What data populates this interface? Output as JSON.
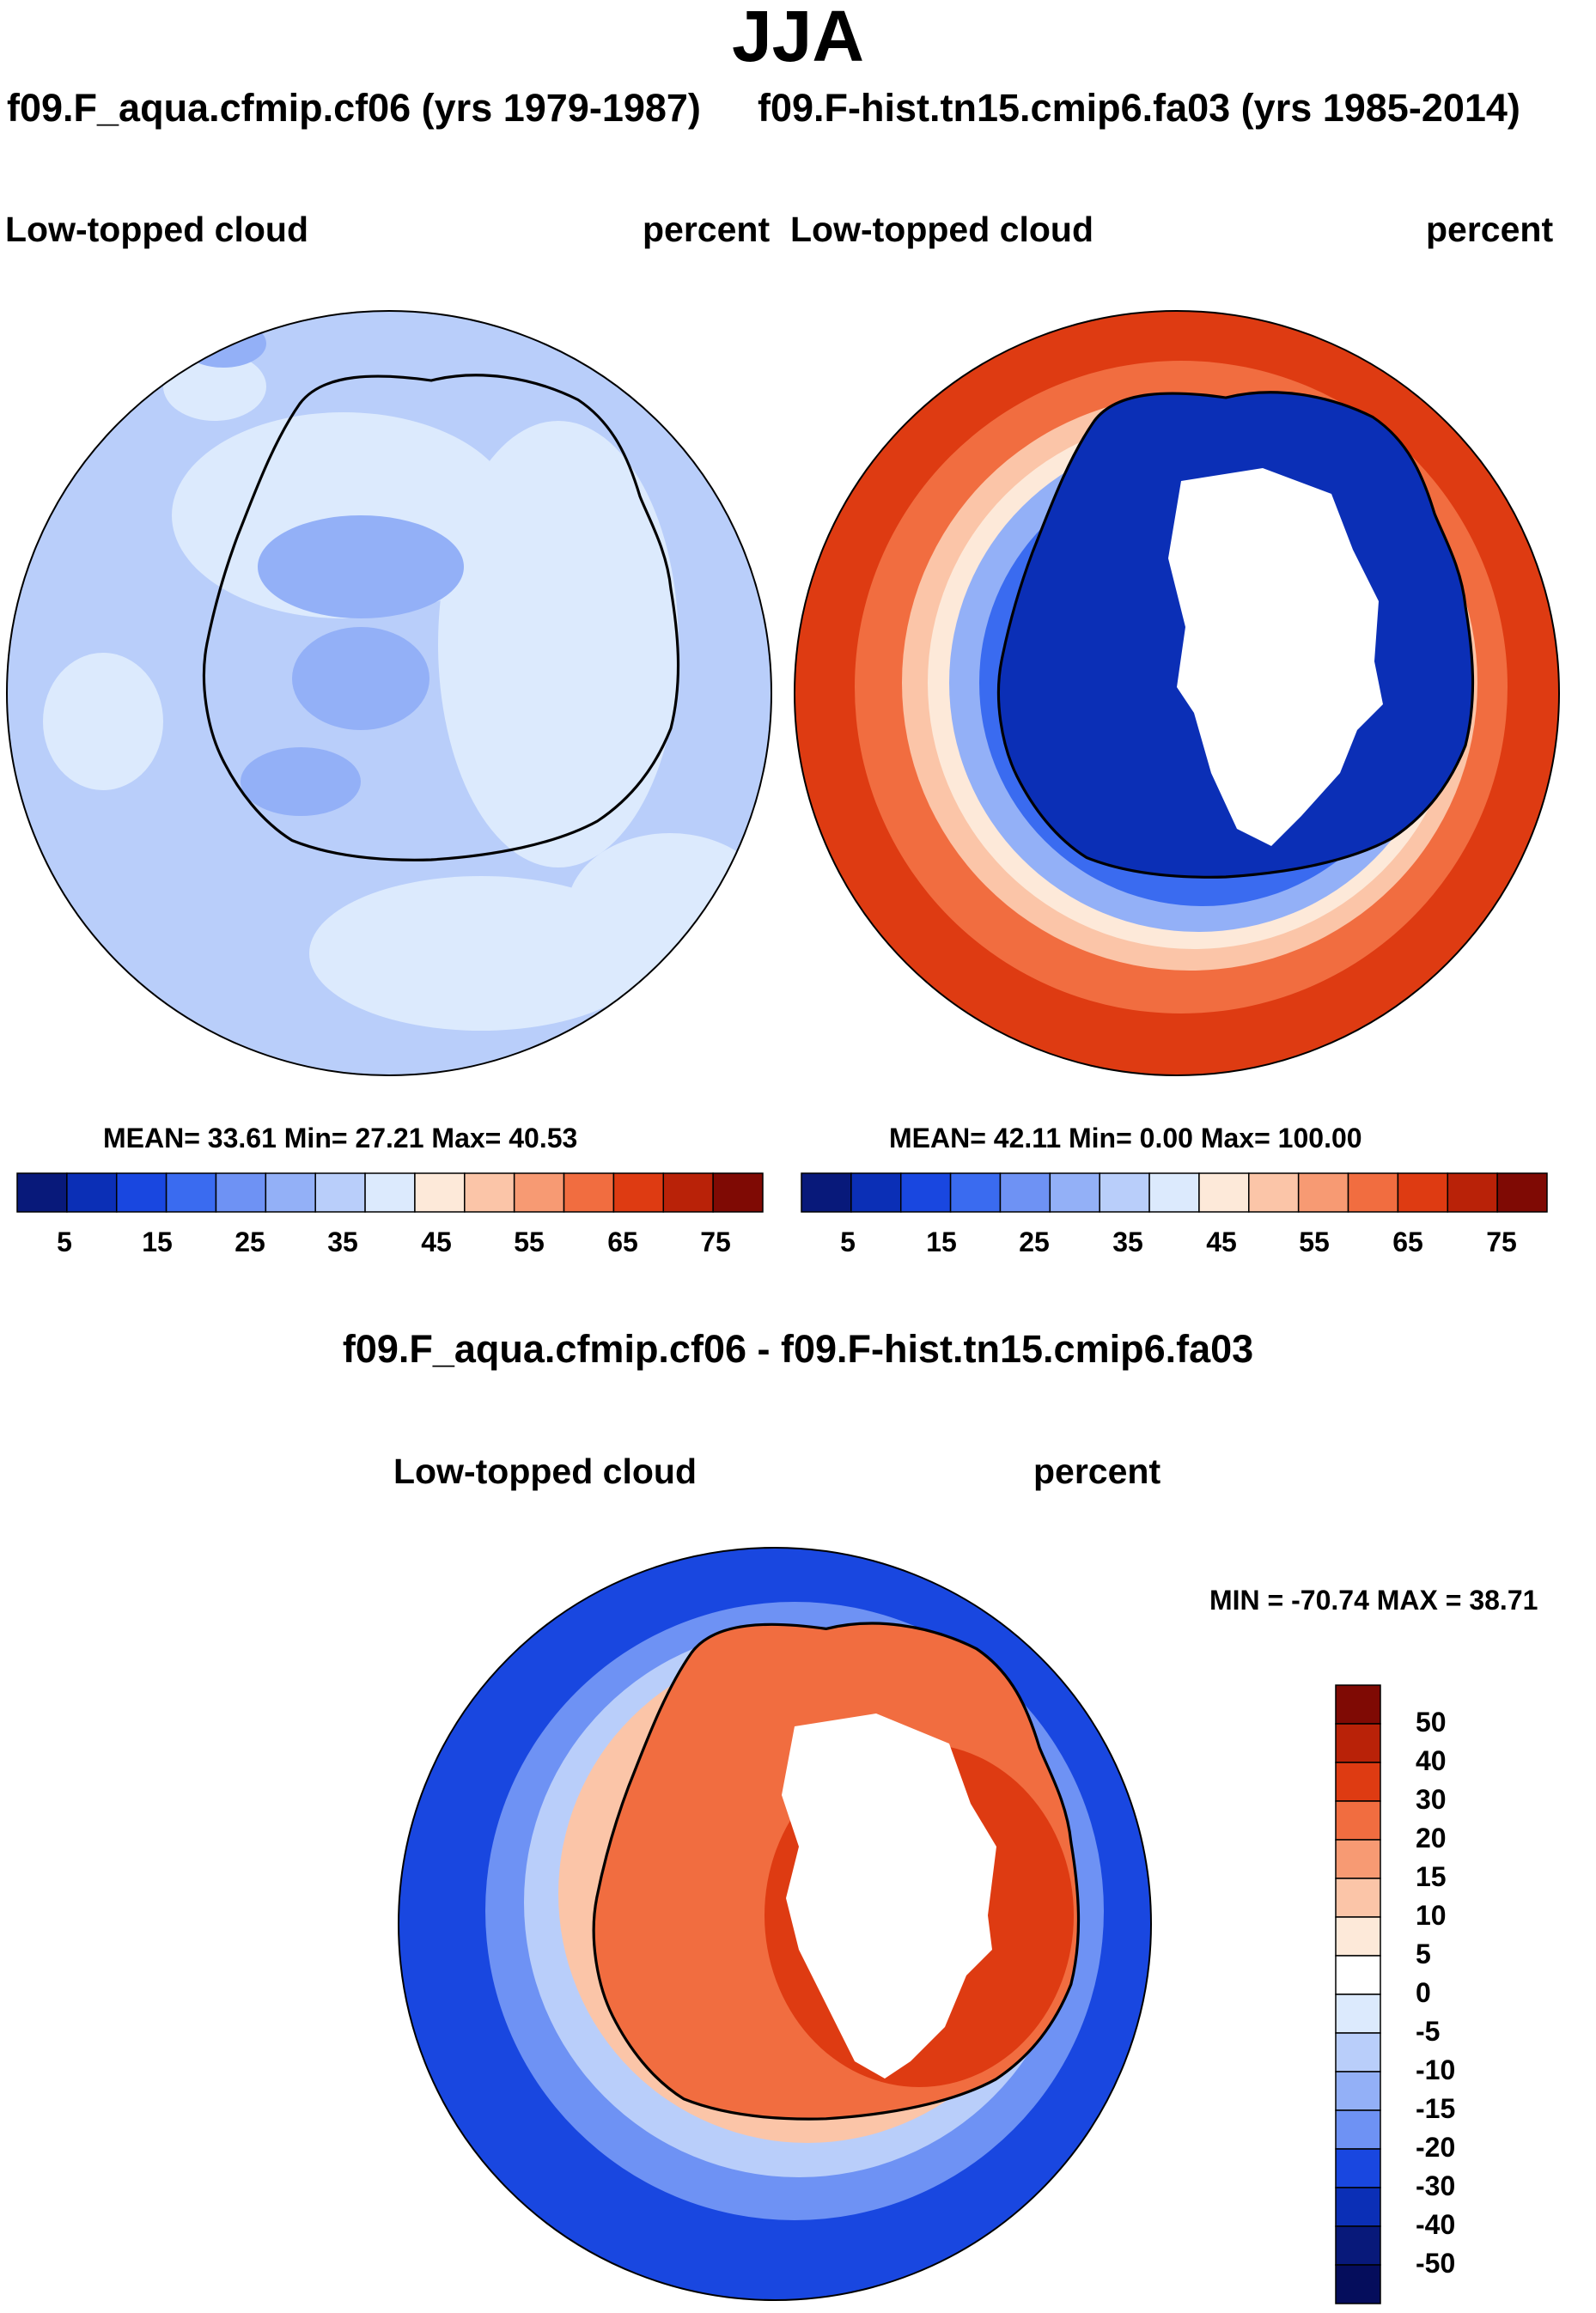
{
  "season": "JJA",
  "panels": [
    {
      "case_title": "f09.F_aqua.cfmip.cf06 (yrs 1979-1987)",
      "variable": "Low-topped cloud",
      "units": "percent",
      "stats_text": "MEAN=  33.61  Min=  27.21  Max=  40.53",
      "stats": {
        "mean": 33.61,
        "min": 27.21,
        "max": 40.53
      }
    },
    {
      "case_title": "f09.F-hist.tn15.cmip6.fa03 (yrs 1985-2014)",
      "variable": "Low-topped cloud",
      "units": "percent",
      "stats_text": "MEAN=  42.11  Min=    0.00  Max= 100.00",
      "stats": {
        "mean": 42.11,
        "min": 0.0,
        "max": 100.0
      }
    }
  ],
  "abs_colorbar": {
    "tick_labels": [
      "5",
      "15",
      "25",
      "35",
      "45",
      "55",
      "65",
      "75"
    ],
    "colors": [
      "#08197a",
      "#0b2fb6",
      "#1947e0",
      "#3a6bf0",
      "#6e92f4",
      "#93b0f7",
      "#b9cefa",
      "#dceafd",
      "#fde9d9",
      "#fbc5a8",
      "#f79a73",
      "#f16d40",
      "#de3b12",
      "#b92208",
      "#7f0a04"
    ]
  },
  "diff_panel": {
    "title": "f09.F_aqua.cfmip.cf06 - f09.F-hist.tn15.cmip6.fa03",
    "variable": "Low-topped cloud",
    "units": "percent",
    "stats_text": "MIN = -70.74 MAX =  38.71",
    "stats": {
      "min": -70.74,
      "max": 38.71
    }
  },
  "diff_colorbar": {
    "tick_labels": [
      "50",
      "40",
      "30",
      "20",
      "15",
      "10",
      "5",
      "0",
      "-5",
      "-10",
      "-15",
      "-20",
      "-30",
      "-40",
      "-50"
    ],
    "colors": [
      "#7f0a04",
      "#b92208",
      "#de3b12",
      "#f16d40",
      "#f79a73",
      "#fbc5a8",
      "#fde9d9",
      "#ffffff",
      "#dceafd",
      "#b9cefa",
      "#93b0f7",
      "#6e92f4",
      "#1947e0",
      "#0b2fb6",
      "#08197a",
      "#050d5c"
    ]
  },
  "map_colors": {
    "left_base": "#b9cefa",
    "left_light": "#dceafd",
    "left_dark": "#93b0f7",
    "right_ocean_outer": "#de3b12",
    "right_ocean_mid": "#f16d40",
    "right_ring_warm": "#fbc5a8",
    "right_ring_neutral": "#fde9d9",
    "right_ring_cool": "#93b0f7",
    "right_ice_edge": "#3a6bf0",
    "right_interior": "#0b2fb6",
    "diff_ocean": "#1947e0",
    "diff_ring_mid": "#6e92f4",
    "diff_ring_light": "#b9cefa",
    "diff_ring_pale": "#fbc5a8",
    "diff_continent": "#f16d40",
    "diff_continent_dark": "#de3b12",
    "missing": "#ffffff",
    "coast": "#000000"
  }
}
